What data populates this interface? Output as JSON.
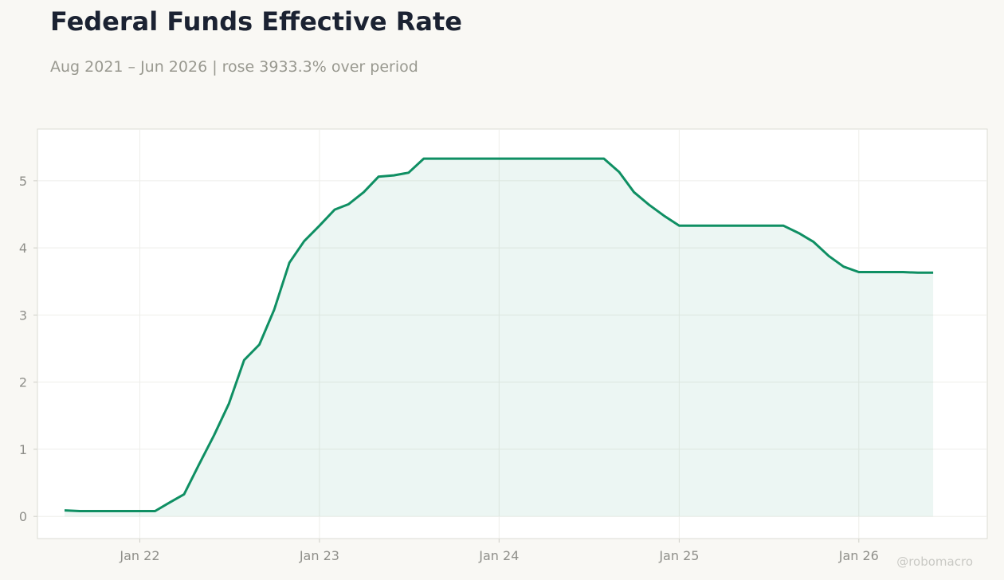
{
  "header": {
    "title": "Federal Funds Effective Rate",
    "subtitle": "Aug 2021 – Jun 2026 | rose 3933.3% over period"
  },
  "watermark": "@robomacro",
  "colors": {
    "line": "#0f8f63",
    "fill": "#0f8f63",
    "background": "#f9f8f4",
    "plot_background": "#ffffff"
  },
  "chart_data": {
    "type": "area",
    "title": "Federal Funds Effective Rate",
    "subtitle": "Aug 2021 – Jun 2026 | rose 3933.3% over period",
    "xlabel": "",
    "ylabel": "",
    "x_ticks": [
      "Jan 22",
      "Jan 23",
      "Jan 24",
      "Jan 25",
      "Jan 26"
    ],
    "y_ticks": [
      0,
      1,
      2,
      3,
      4,
      5
    ],
    "ylim": [
      -0.33,
      5.77
    ],
    "xlim": [
      "2021-06-07",
      "2026-09-19"
    ],
    "grid": true,
    "legend": "none",
    "series": [
      {
        "x": [
          "2021-08-01",
          "2021-09-01",
          "2021-10-01",
          "2021-11-01",
          "2021-12-01",
          "2022-01-01",
          "2022-02-01",
          "2022-03-01",
          "2022-04-01",
          "2022-05-01",
          "2022-06-01",
          "2022-07-01",
          "2022-08-01",
          "2022-09-01",
          "2022-10-01",
          "2022-11-01",
          "2022-12-01",
          "2023-01-01",
          "2023-02-01",
          "2023-03-01",
          "2023-04-01",
          "2023-05-01",
          "2023-06-01",
          "2023-07-01",
          "2023-08-01",
          "2023-09-01",
          "2023-10-01",
          "2023-11-01",
          "2023-12-01",
          "2024-01-01",
          "2024-02-01",
          "2024-03-01",
          "2024-04-01",
          "2024-05-01",
          "2024-06-01",
          "2024-07-01",
          "2024-08-01",
          "2024-09-01",
          "2024-10-01",
          "2024-11-01",
          "2024-12-01",
          "2025-01-01",
          "2025-02-01",
          "2025-03-01",
          "2025-04-01",
          "2025-05-01",
          "2025-06-01",
          "2025-07-01",
          "2025-08-01",
          "2025-09-01",
          "2025-10-01",
          "2025-11-01",
          "2025-12-01",
          "2026-01-01",
          "2026-02-01",
          "2026-03-01",
          "2026-04-01",
          "2026-05-01",
          "2026-06-01"
        ],
        "values": [
          0.09,
          0.08,
          0.08,
          0.08,
          0.08,
          0.08,
          0.08,
          0.2,
          0.33,
          0.77,
          1.21,
          1.68,
          2.33,
          2.56,
          3.08,
          3.78,
          4.1,
          4.33,
          4.57,
          4.65,
          4.83,
          5.06,
          5.08,
          5.12,
          5.33,
          5.33,
          5.33,
          5.33,
          5.33,
          5.33,
          5.33,
          5.33,
          5.33,
          5.33,
          5.33,
          5.33,
          5.33,
          5.13,
          4.83,
          4.64,
          4.48,
          4.33,
          4.33,
          4.33,
          4.33,
          4.33,
          4.33,
          4.33,
          4.33,
          4.22,
          4.09,
          3.88,
          3.72,
          3.64,
          3.64,
          3.64,
          3.64,
          3.63,
          3.63
        ]
      }
    ]
  }
}
